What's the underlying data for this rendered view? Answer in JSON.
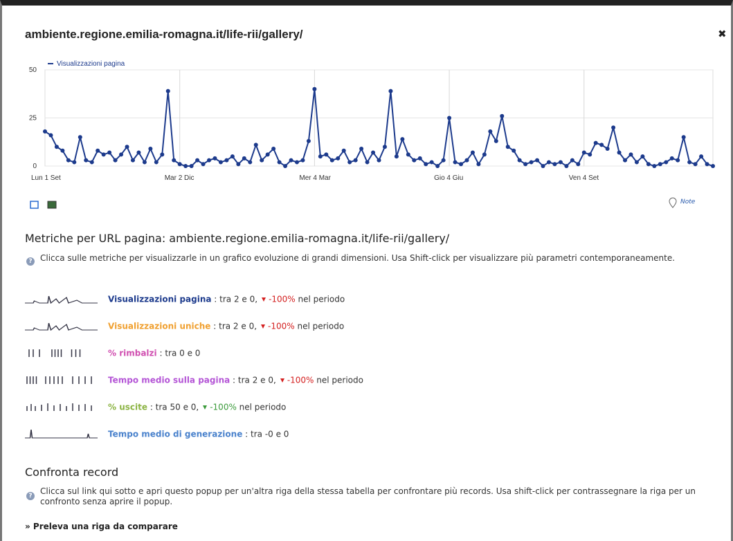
{
  "header": {
    "title": "ambiente.regione.emilia-romagna.it/life-rii/gallery/",
    "close": "✖",
    "note": "Note"
  },
  "chart_data": {
    "type": "line",
    "series": [
      {
        "name": "Visualizzazioni pagina",
        "color": "#1c3a8c",
        "values": [
          18,
          16,
          10,
          8,
          3,
          2,
          15,
          3,
          2,
          8,
          6,
          7,
          3,
          6,
          10,
          3,
          7,
          2,
          9,
          2,
          6,
          39,
          3,
          1,
          0,
          0,
          3,
          1,
          3,
          4,
          2,
          3,
          5,
          1,
          4,
          2,
          11,
          3,
          6,
          9,
          2,
          0,
          3,
          2,
          3,
          13,
          40,
          5,
          6,
          3,
          4,
          8,
          2,
          3,
          9,
          2,
          7,
          3,
          10,
          39,
          5,
          14,
          6,
          3,
          4,
          1,
          2,
          0,
          3,
          25,
          2,
          1,
          3,
          7,
          1,
          6,
          18,
          13,
          26,
          10,
          8,
          3,
          1,
          2,
          3,
          0,
          2,
          1,
          2,
          0,
          3,
          1,
          7,
          6,
          12,
          11,
          9,
          20,
          7,
          3,
          6,
          2,
          5,
          1,
          0,
          1,
          2,
          4,
          3,
          15,
          2,
          1,
          5,
          1,
          0
        ]
      }
    ],
    "categories": [
      "Lun 1 Set",
      null,
      null,
      null,
      null,
      null,
      null,
      null,
      null,
      null,
      null,
      null,
      null,
      null,
      null,
      null,
      null,
      null,
      null,
      null,
      null,
      null,
      null,
      "Mar 2 Dic",
      null,
      null,
      null,
      null,
      null,
      null,
      null,
      null,
      null,
      null,
      null,
      null,
      null,
      null,
      null,
      null,
      null,
      null,
      null,
      null,
      null,
      null,
      "Mer 4 Mar",
      null,
      null,
      null,
      null,
      null,
      null,
      null,
      null,
      null,
      null,
      null,
      null,
      null,
      null,
      null,
      null,
      null,
      null,
      null,
      null,
      null,
      null,
      "Gio 4 Giu",
      null,
      null,
      null,
      null,
      null,
      null,
      null,
      null,
      null,
      null,
      null,
      null,
      null,
      null,
      null,
      null,
      null,
      null,
      null,
      null,
      null,
      null,
      "Ven 4 Set",
      null,
      null,
      null,
      null,
      null,
      null,
      null,
      null,
      null,
      null,
      null,
      null,
      null,
      null,
      null,
      null,
      null,
      null,
      null,
      null,
      null,
      null
    ],
    "ylim": [
      0,
      50
    ],
    "yticks": [
      0,
      25,
      50
    ],
    "grid": true
  },
  "metrics_section": {
    "heading": "Metriche per URL pagina: ambiente.regione.emilia-romagna.it/life-rii/gallery/",
    "help": "Clicca sulle metriche per visualizzarle in un grafico evoluzione di grandi dimensioni. Usa Shift-click per visualizzare più parametri contemporaneamente.",
    "metrics": [
      {
        "name": "Visualizzazioni pagina",
        "color": "#1c3a8c",
        "detail": " : tra 2 e 0,",
        "change": "-100%",
        "change_color": "#d42020",
        "suffix": " nel periodo"
      },
      {
        "name": "Visualizzazioni uniche",
        "color": "#f0a030",
        "detail": " : tra 2 e 0,",
        "change": "-100%",
        "change_color": "#d42020",
        "suffix": " nel periodo"
      },
      {
        "name": "% rimbalzi",
        "color": "#d04fb0",
        "detail": " : tra 0 e 0"
      },
      {
        "name": "Tempo medio sulla pagina",
        "color": "#b455d6",
        "detail": " : tra 2 e 0,",
        "change": "-100%",
        "change_color": "#d42020",
        "suffix": " nel periodo"
      },
      {
        "name": "% uscite",
        "color": "#8cb444",
        "detail": " : tra 50 e 0,",
        "change": "-100%",
        "change_color": "#3a9a3a",
        "suffix": " nel periodo"
      },
      {
        "name": "Tempo medio di generazione",
        "color": "#4a82cc",
        "detail": " : tra -0 e 0"
      }
    ]
  },
  "compare_section": {
    "heading": "Confronta record",
    "help": "Clicca sul link qui sotto e apri questo popup per un'altra riga della stessa tabella per confrontare più records. Usa shift-click per contrassegnare la riga per un confronto senza aprire il popup.",
    "link": "» Preleva una riga da comparare"
  }
}
